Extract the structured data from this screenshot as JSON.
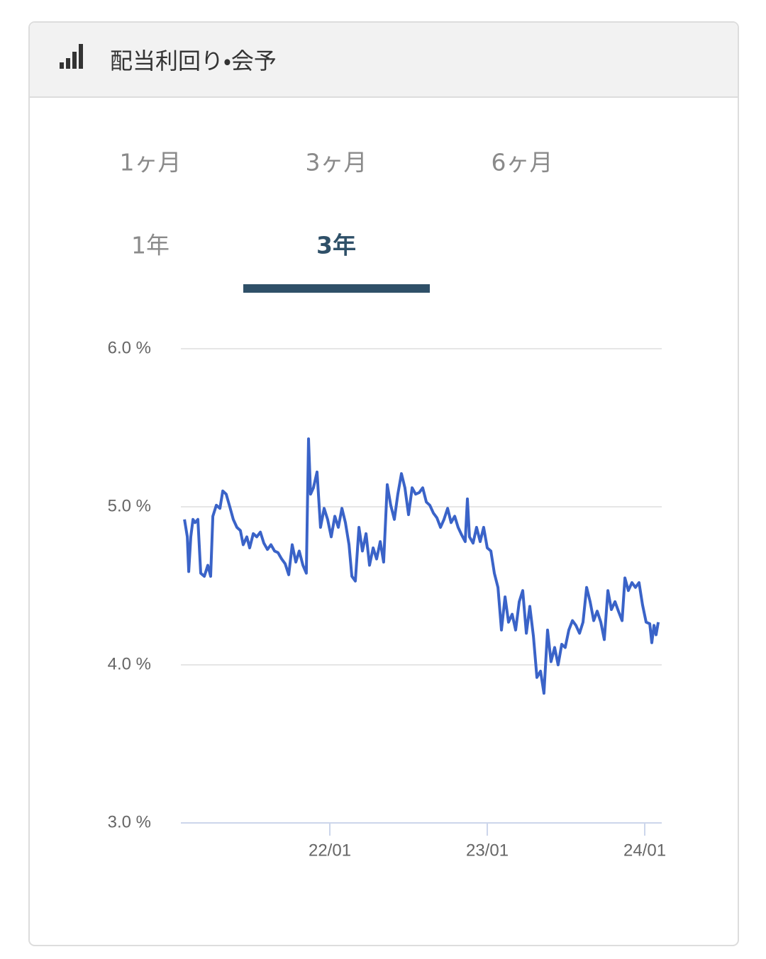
{
  "header": {
    "title": "配当利回り・会予"
  },
  "tabs": [
    "1ヶ月",
    "3ヶ月",
    "6ヶ月",
    "1年",
    "3年"
  ],
  "chart_data": {
    "type": "line",
    "x": [
      2021.077,
      2021.095,
      2021.104,
      2021.117,
      2021.131,
      2021.144,
      2021.162,
      2021.18,
      2021.203,
      2021.225,
      2021.243,
      2021.257,
      2021.279,
      2021.302,
      2021.32,
      2021.342,
      2021.365,
      2021.387,
      2021.41,
      2021.432,
      2021.45,
      2021.473,
      2021.491,
      2021.514,
      2021.536,
      2021.559,
      2021.581,
      2021.604,
      2021.626,
      2021.649,
      2021.671,
      2021.694,
      2021.716,
      2021.739,
      2021.761,
      2021.784,
      2021.806,
      2021.829,
      2021.851,
      2021.865,
      2021.878,
      2021.896,
      2021.919,
      2021.941,
      2021.964,
      2021.986,
      2022.009,
      2022.032,
      2022.054,
      2022.077,
      2022.099,
      2022.122,
      2022.14,
      2022.162,
      2022.185,
      2022.207,
      2022.23,
      2022.252,
      2022.275,
      2022.297,
      2022.32,
      2022.342,
      2022.365,
      2022.387,
      2022.41,
      2022.432,
      2022.455,
      2022.477,
      2022.5,
      2022.523,
      2022.545,
      2022.568,
      2022.59,
      2022.613,
      2022.635,
      2022.658,
      2022.68,
      2022.703,
      2022.725,
      2022.748,
      2022.77,
      2022.793,
      2022.815,
      2022.838,
      2022.86,
      2022.874,
      2022.887,
      2022.91,
      2022.932,
      2022.955,
      2022.977,
      2023.0,
      2023.023,
      2023.045,
      2023.068,
      2023.09,
      2023.113,
      2023.135,
      2023.158,
      2023.18,
      2023.203,
      2023.225,
      2023.248,
      2023.27,
      2023.293,
      2023.315,
      2023.338,
      2023.36,
      2023.383,
      2023.405,
      2023.428,
      2023.45,
      2023.473,
      2023.495,
      2023.518,
      2023.541,
      2023.563,
      2023.586,
      2023.608,
      2023.631,
      2023.653,
      2023.676,
      2023.698,
      2023.721,
      2023.743,
      2023.766,
      2023.788,
      2023.811,
      2023.833,
      2023.856,
      2023.874,
      2023.896,
      2023.919,
      2023.941,
      2023.964,
      2023.986,
      2024.009,
      2024.032,
      2024.045,
      2024.059,
      2024.072,
      2024.086
    ],
    "series": [
      {
        "color": "#3a63c8",
        "values": [
          4.92,
          4.81,
          4.59,
          4.81,
          4.92,
          4.9,
          4.92,
          4.58,
          4.56,
          4.63,
          4.56,
          4.94,
          5.01,
          4.99,
          5.1,
          5.08,
          5.0,
          4.92,
          4.87,
          4.85,
          4.76,
          4.81,
          4.74,
          4.83,
          4.81,
          4.84,
          4.77,
          4.73,
          4.76,
          4.72,
          4.71,
          4.67,
          4.64,
          4.57,
          4.76,
          4.65,
          4.72,
          4.63,
          4.58,
          5.43,
          5.08,
          5.12,
          5.22,
          4.87,
          4.99,
          4.92,
          4.81,
          4.94,
          4.87,
          4.99,
          4.9,
          4.76,
          4.56,
          4.53,
          4.87,
          4.72,
          4.83,
          4.63,
          4.74,
          4.67,
          4.78,
          4.65,
          5.14,
          5.01,
          4.92,
          5.08,
          5.21,
          5.12,
          4.95,
          5.12,
          5.08,
          5.09,
          5.12,
          5.03,
          5.01,
          4.96,
          4.93,
          4.87,
          4.92,
          4.99,
          4.9,
          4.94,
          4.87,
          4.82,
          4.78,
          5.05,
          4.81,
          4.77,
          4.87,
          4.78,
          4.87,
          4.74,
          4.72,
          4.58,
          4.49,
          4.22,
          4.43,
          4.27,
          4.32,
          4.22,
          4.4,
          4.47,
          4.2,
          4.37,
          4.18,
          3.92,
          3.96,
          3.82,
          4.22,
          4.02,
          4.11,
          4.0,
          4.13,
          4.11,
          4.22,
          4.28,
          4.25,
          4.2,
          4.27,
          4.49,
          4.4,
          4.28,
          4.34,
          4.27,
          4.16,
          4.47,
          4.35,
          4.4,
          4.34,
          4.28,
          4.55,
          4.47,
          4.52,
          4.49,
          4.52,
          4.38,
          4.27,
          4.26,
          4.14,
          4.25,
          4.19,
          4.27
        ]
      }
    ],
    "xlim": [
      2021.054,
      2024.108
    ],
    "xticks": [
      {
        "value": 2022,
        "label": "22/01"
      },
      {
        "value": 2023,
        "label": "23/01"
      },
      {
        "value": 2024,
        "label": "24/01"
      }
    ],
    "ylim": [
      3,
      6
    ],
    "yticks": [
      {
        "value": 3,
        "label": "3.0 %"
      },
      {
        "value": 4,
        "label": "4.0 %"
      },
      {
        "value": 5,
        "label": "5.0 %"
      },
      {
        "value": 6,
        "label": "6.0 %"
      }
    ],
    "grid": true
  }
}
